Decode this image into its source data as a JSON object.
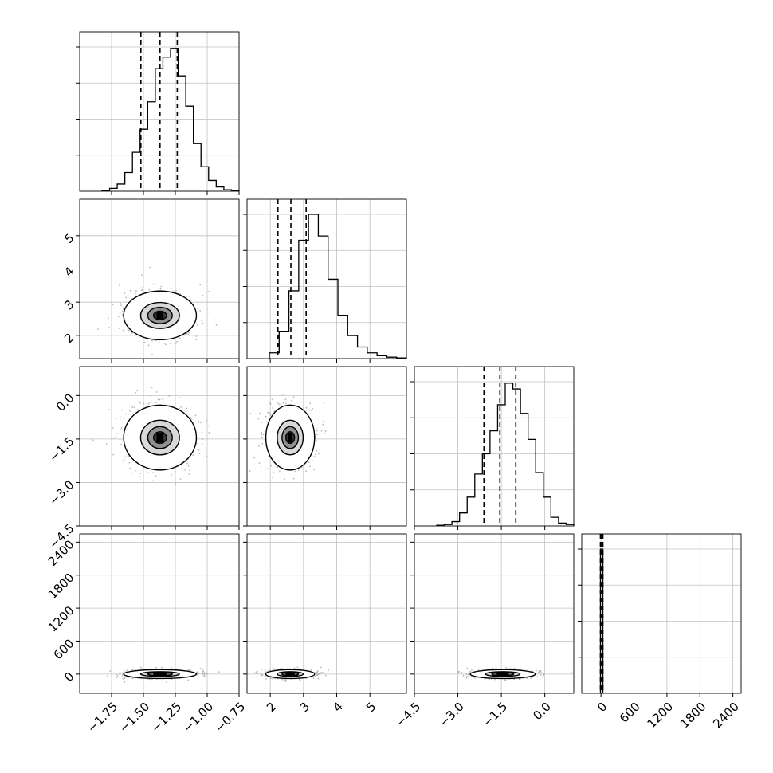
{
  "chart_data": {
    "type": "corner",
    "grid": true,
    "dimensions": [
      {
        "range": [
          -2.0,
          -0.75
        ],
        "tick_values": [
          -1.75,
          -1.5,
          -1.25,
          -1.0,
          -0.75
        ],
        "tick_labels": [
          "−1.75",
          "−1.50",
          "−1.25",
          "−1.00",
          "−0.75"
        ],
        "quantiles": [
          -1.52,
          -1.37,
          -1.235
        ],
        "histogram": [
          0.005,
          0.02,
          0.05,
          0.13,
          0.27,
          0.43,
          0.62,
          0.85,
          0.93,
          0.99,
          0.8,
          0.59,
          0.33,
          0.17,
          0.075,
          0.03,
          0.01,
          0.003
        ]
      },
      {
        "range": [
          1.3,
          6.1
        ],
        "tick_values": [
          2,
          3,
          4,
          5
        ],
        "tick_labels": [
          "2",
          "3",
          "4",
          "5"
        ],
        "quantiles": [
          2.23,
          2.62,
          3.08
        ],
        "histogram": [
          0.04,
          0.19,
          0.47,
          0.82,
          1.0,
          0.85,
          0.55,
          0.3,
          0.16,
          0.08,
          0.04,
          0.02,
          0.01,
          0.005
        ]
      },
      {
        "range": [
          -4.5,
          1.0
        ],
        "tick_values": [
          -4.5,
          -3.0,
          -1.5,
          0.0
        ],
        "tick_labels": [
          "−4.5",
          "−3.0",
          "−1.5",
          "0.0"
        ],
        "quantiles": [
          -2.1,
          -1.55,
          -1.0
        ],
        "histogram": [
          0.005,
          0.01,
          0.03,
          0.09,
          0.2,
          0.36,
          0.5,
          0.66,
          0.84,
          0.99,
          0.95,
          0.78,
          0.6,
          0.37,
          0.2,
          0.06,
          0.02,
          0.01
        ]
      },
      {
        "range": [
          -350,
          2550
        ],
        "tick_values": [
          0,
          600,
          1200,
          1800,
          2400
        ],
        "tick_labels": [
          "0",
          "600",
          "1200",
          "1800",
          "2400"
        ],
        "quantiles": [
          -10,
          12,
          35
        ],
        "histogram": [
          1.0
        ],
        "histogram_range": [
          -10,
          35
        ]
      }
    ],
    "pairs": [
      {
        "row": 1,
        "col": 0,
        "center": [
          -1.37,
          2.6
        ],
        "spread": [
          0.14,
          0.36
        ],
        "contour_levels": [
          0.07,
          0.23,
          0.48,
          0.9
        ]
      },
      {
        "row": 2,
        "col": 0,
        "center": [
          -1.37,
          -1.45
        ],
        "spread": [
          0.14,
          0.55
        ],
        "contour_levels": [
          0.07,
          0.23,
          0.48,
          0.9
        ]
      },
      {
        "row": 2,
        "col": 1,
        "center": [
          2.6,
          -1.45
        ],
        "spread": [
          0.36,
          0.55
        ],
        "contour_levels": [
          0.07,
          0.23,
          0.48,
          0.9
        ]
      },
      {
        "row": 3,
        "col": 0,
        "center": [
          -1.37,
          0
        ],
        "spread": [
          0.14,
          40
        ],
        "contour_levels": [
          0.07,
          0.23,
          0.48,
          0.9
        ]
      },
      {
        "row": 3,
        "col": 1,
        "center": [
          2.6,
          0
        ],
        "spread": [
          0.36,
          40
        ],
        "contour_levels": [
          0.07,
          0.23,
          0.48,
          0.9
        ]
      },
      {
        "row": 3,
        "col": 2,
        "center": [
          -1.45,
          0
        ],
        "spread": [
          0.55,
          40
        ],
        "contour_levels": [
          0.07,
          0.23,
          0.48,
          0.9
        ]
      }
    ]
  }
}
